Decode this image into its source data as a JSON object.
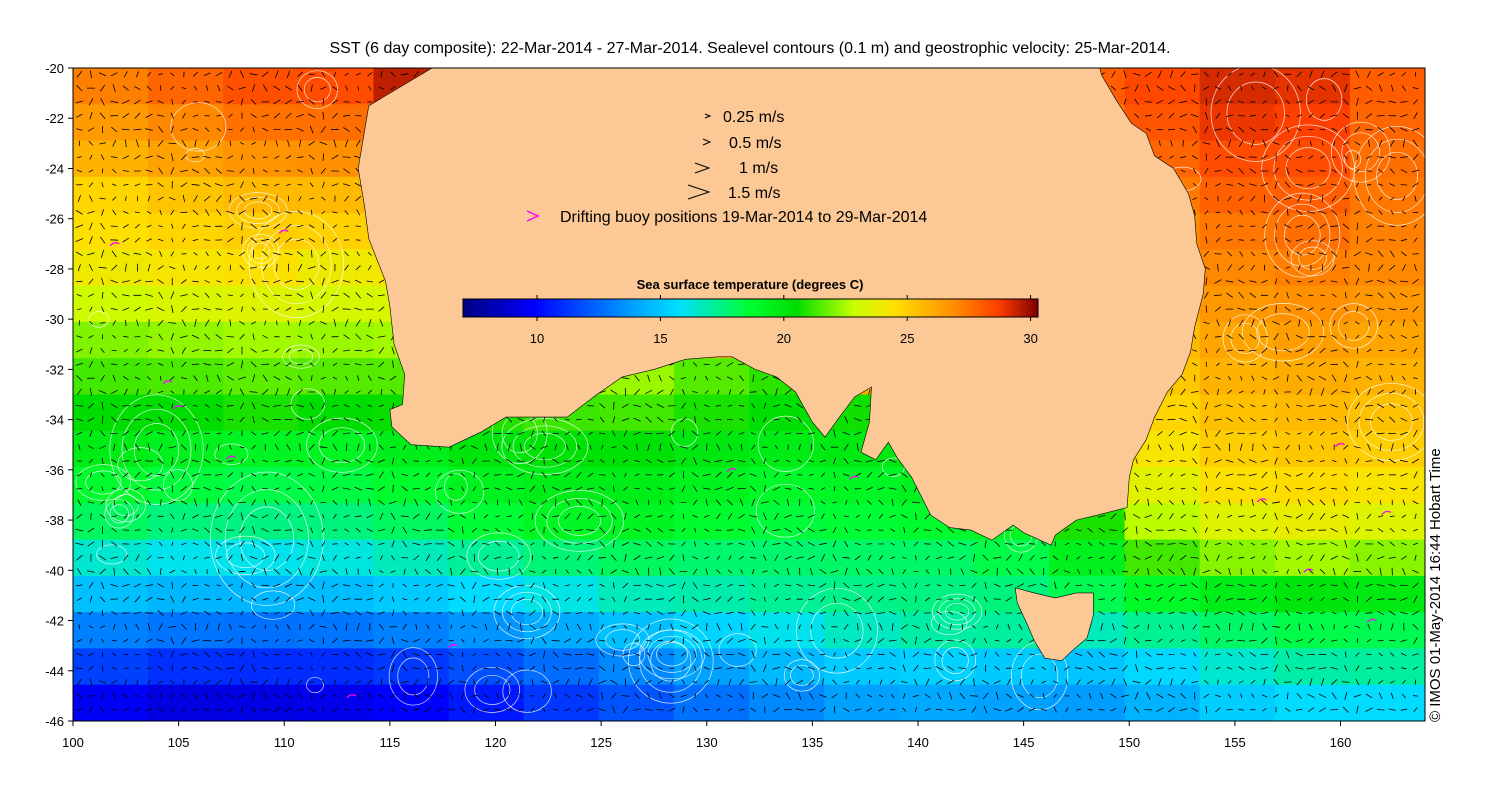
{
  "title": "SST (6 day composite): 22-Mar-2014 - 27-Mar-2014. Sealevel contours (0.1 m) and geostrophic velocity: 25-Mar-2014.",
  "credit": "© IMOS 01-May-2014 16:44 Hobart Time",
  "legend": {
    "velocity_scale": [
      {
        "label": "0.25 m/s",
        "speed": 0.25
      },
      {
        "label": "0.5 m/s",
        "speed": 0.5
      },
      {
        "label": "1 m/s",
        "speed": 1
      },
      {
        "label": "1.5 m/s",
        "speed": 1.5
      }
    ],
    "buoy_label": "Drifting buoy positions 19-Mar-2014 to 29-Mar-2014",
    "buoy_color": "#ff00ff"
  },
  "colorbar": {
    "title": "Sea surface temperature (degrees C)",
    "min": 7,
    "max": 30.3,
    "ticks": [
      10,
      15,
      20,
      25,
      30
    ],
    "ticklabels": [
      "10",
      "15",
      "20",
      "25",
      "30"
    ]
  },
  "map": {
    "lon_range": [
      100,
      164
    ],
    "lat_range": [
      -46,
      -20
    ],
    "lon_ticks": [
      100,
      105,
      110,
      115,
      120,
      125,
      130,
      135,
      140,
      145,
      150,
      155,
      160
    ],
    "lon_ticklabels": [
      "100",
      "105",
      "110",
      "115",
      "120",
      "125",
      "130",
      "135",
      "140",
      "145",
      "150",
      "155",
      "160"
    ],
    "lat_ticks": [
      -20,
      -22,
      -24,
      -26,
      -28,
      -30,
      -32,
      -34,
      -36,
      -38,
      -40,
      -42,
      -44,
      -46
    ],
    "lat_ticklabels": [
      "-20",
      "-22",
      "-24",
      "-26",
      "-28",
      "-30",
      "-32",
      "-34",
      "-36",
      "-38",
      "-40",
      "-42",
      "-44",
      "-46"
    ],
    "land_color": "#fcc896",
    "contour_color": "#ffffff",
    "arrow_color": "#000000",
    "australia_outline": [
      [
        113.5,
        -20
      ],
      [
        115,
        -20
      ],
      [
        117,
        -20
      ],
      [
        114,
        -21.5
      ],
      [
        113.8,
        -22.5
      ],
      [
        113.5,
        -24
      ],
      [
        113.8,
        -25.5
      ],
      [
        114,
        -26.8
      ],
      [
        114.8,
        -28.5
      ],
      [
        115,
        -29.5
      ],
      [
        115.2,
        -31
      ],
      [
        115.7,
        -32.2
      ],
      [
        115.6,
        -33.4
      ],
      [
        115,
        -33.6
      ],
      [
        115.1,
        -34.3
      ],
      [
        116,
        -35
      ],
      [
        117.8,
        -35.1
      ],
      [
        119.3,
        -34.5
      ],
      [
        120.5,
        -33.9
      ],
      [
        122,
        -33.9
      ],
      [
        123.4,
        -33.9
      ],
      [
        124.8,
        -33
      ],
      [
        126,
        -32.3
      ],
      [
        127.5,
        -32
      ],
      [
        129,
        -31.6
      ],
      [
        130.5,
        -31.5
      ],
      [
        131.2,
        -31.5
      ],
      [
        132.3,
        -32
      ],
      [
        133.3,
        -32.3
      ],
      [
        134.2,
        -32.9
      ],
      [
        135,
        -34.1
      ],
      [
        135.6,
        -34.7
      ],
      [
        136.2,
        -34
      ],
      [
        137,
        -33.1
      ],
      [
        137.8,
        -32.7
      ],
      [
        137.7,
        -34.1
      ],
      [
        137.3,
        -35.3
      ],
      [
        138,
        -35.6
      ],
      [
        138.6,
        -34.9
      ],
      [
        139,
        -35.5
      ],
      [
        139.7,
        -36.3
      ],
      [
        140.6,
        -37.8
      ],
      [
        141.5,
        -38.3
      ],
      [
        142.5,
        -38.4
      ],
      [
        143.5,
        -38.8
      ],
      [
        144.5,
        -38.2
      ],
      [
        145,
        -38.5
      ],
      [
        146.3,
        -39
      ],
      [
        146.5,
        -38.6
      ],
      [
        147.5,
        -38
      ],
      [
        148.5,
        -37.8
      ],
      [
        149.9,
        -37.5
      ],
      [
        150,
        -36.3
      ],
      [
        150.2,
        -35.6
      ],
      [
        150.8,
        -34.8
      ],
      [
        151.2,
        -33.9
      ],
      [
        151.8,
        -32.9
      ],
      [
        152.5,
        -32.2
      ],
      [
        152.9,
        -31.3
      ],
      [
        153.1,
        -30.3
      ],
      [
        153.5,
        -29
      ],
      [
        153.6,
        -28
      ],
      [
        153.2,
        -27
      ],
      [
        153.1,
        -25.9
      ],
      [
        152.8,
        -25
      ],
      [
        152.1,
        -24
      ],
      [
        151.2,
        -23.5
      ],
      [
        150.8,
        -22.6
      ],
      [
        150.1,
        -22.2
      ],
      [
        149.4,
        -21.3
      ],
      [
        148.7,
        -20.3
      ],
      [
        148.6,
        -20
      ]
    ],
    "tasmania_outline": [
      [
        144.6,
        -40.7
      ],
      [
        145.5,
        -40.9
      ],
      [
        146.5,
        -41.1
      ],
      [
        147.5,
        -40.9
      ],
      [
        148.3,
        -40.9
      ],
      [
        148.3,
        -41.8
      ],
      [
        148,
        -42.7
      ],
      [
        147.3,
        -43.2
      ],
      [
        146.8,
        -43.6
      ],
      [
        146,
        -43.5
      ],
      [
        145.5,
        -42.8
      ],
      [
        145.2,
        -42.2
      ],
      [
        144.7,
        -41.3
      ]
    ],
    "sst_field": [
      [
        27.2,
        27.8,
        28.3,
        28.4,
        29.5,
        30,
        30,
        29,
        26,
        26,
        26,
        26,
        26.8,
        28,
        28.5,
        29.2,
        29,
        28
      ],
      [
        26.5,
        27,
        27.5,
        27.6,
        28.4,
        29.2,
        29.4,
        28.5,
        26,
        26,
        26,
        26,
        26.5,
        27.5,
        28.2,
        28.9,
        28.7,
        27.8
      ],
      [
        25.8,
        26.3,
        26.7,
        26.8,
        27.2,
        28.2,
        28.6,
        27.5,
        26,
        26,
        26,
        26,
        26,
        27,
        27.8,
        28.4,
        28.4,
        27.6
      ],
      [
        24.8,
        25.3,
        25.6,
        25.6,
        26.2,
        27,
        27.4,
        26.5,
        26,
        26,
        26,
        26,
        25.6,
        26.5,
        27.3,
        27.9,
        28,
        27.4
      ],
      [
        24.5,
        24.8,
        25,
        24.9,
        25.2,
        25.8,
        26.3,
        25.5,
        26,
        26,
        26,
        26,
        25.2,
        26,
        26.9,
        27.4,
        27.6,
        27.2
      ],
      [
        24,
        24.2,
        24.4,
        24,
        24.2,
        24.7,
        25,
        24.5,
        26,
        26,
        26,
        26,
        24.8,
        25.5,
        26.5,
        27,
        27.2,
        27
      ],
      [
        23,
        23.3,
        23.5,
        23.2,
        23.3,
        23.8,
        24,
        23.8,
        26,
        26,
        26,
        26,
        24.4,
        25.1,
        26,
        26.6,
        26.8,
        26.6
      ],
      [
        22,
        22.2,
        22.4,
        22.3,
        22.4,
        22.9,
        23.2,
        23,
        26,
        26,
        26,
        26,
        24,
        24.7,
        25.6,
        26.2,
        26.4,
        26.2
      ],
      [
        21.3,
        21.4,
        21.6,
        21.5,
        21.5,
        21.9,
        22.2,
        22.3,
        21.5,
        21,
        26,
        26,
        23.6,
        24.3,
        25.2,
        25.8,
        26,
        25.8
      ],
      [
        20.5,
        20.5,
        20.8,
        20.5,
        20.6,
        20.9,
        21.2,
        21.3,
        20.8,
        20.4,
        20.7,
        21.2,
        23.2,
        23.9,
        24.8,
        25.4,
        25.6,
        25.4
      ],
      [
        19.7,
        19.4,
        19.2,
        19.2,
        19.5,
        20,
        20.3,
        20.3,
        19.9,
        19.7,
        19.8,
        20,
        21.5,
        23.2,
        24.3,
        25,
        25.2,
        25
      ],
      [
        18.8,
        18.5,
        18.3,
        18.4,
        18.8,
        19.3,
        19.6,
        19.6,
        19.3,
        19,
        19.1,
        19.3,
        20.2,
        22.5,
        23.6,
        24.4,
        24.6,
        24.3
      ],
      [
        18,
        17.6,
        17.5,
        17.6,
        18,
        18.6,
        19.1,
        19.2,
        18.8,
        18.5,
        18.6,
        18.8,
        19.1,
        20.8,
        22.7,
        23.5,
        23.8,
        23.5
      ],
      [
        16.4,
        16,
        16,
        16.2,
        16.7,
        17.2,
        17.7,
        18,
        17.8,
        17.8,
        17.9,
        17.9,
        18.3,
        19.4,
        21.3,
        22.1,
        22.4,
        22.1
      ],
      [
        14.8,
        14.5,
        14.5,
        14.7,
        15.1,
        15.6,
        16.1,
        16.7,
        16.9,
        17.2,
        17.4,
        17.5,
        17.6,
        18.2,
        19,
        19.6,
        20,
        19.8
      ],
      [
        13.1,
        12.8,
        12.7,
        12.8,
        13.1,
        13.6,
        14.2,
        14.8,
        15.4,
        16,
        16.6,
        17,
        17.1,
        16.7,
        17.3,
        17.9,
        18.3,
        18.2
      ],
      [
        11.5,
        11.1,
        11,
        11,
        11.3,
        11.9,
        12.6,
        13.3,
        13.9,
        14.6,
        15.1,
        15.3,
        15.1,
        14.9,
        15.5,
        16.4,
        17,
        17.1
      ],
      [
        9.7,
        9.2,
        9.3,
        9.5,
        9.9,
        10.5,
        11.3,
        12,
        12.7,
        13.3,
        13.9,
        14.1,
        13.9,
        13.8,
        14.4,
        15.2,
        15.6,
        15.6
      ]
    ]
  },
  "chart_data": {
    "type": "heatmap",
    "title": "SST (6 day composite): 22-Mar-2014 - 27-Mar-2014. Sealevel contours (0.1 m) and geostrophic velocity: 25-Mar-2014.",
    "xlabel": "",
    "ylabel": "",
    "xlim": [
      100,
      164
    ],
    "ylim": [
      -46,
      -20
    ],
    "colorbar_label": "Sea surface temperature (degrees C)",
    "colorbar_range": [
      7,
      30.3
    ]
  }
}
